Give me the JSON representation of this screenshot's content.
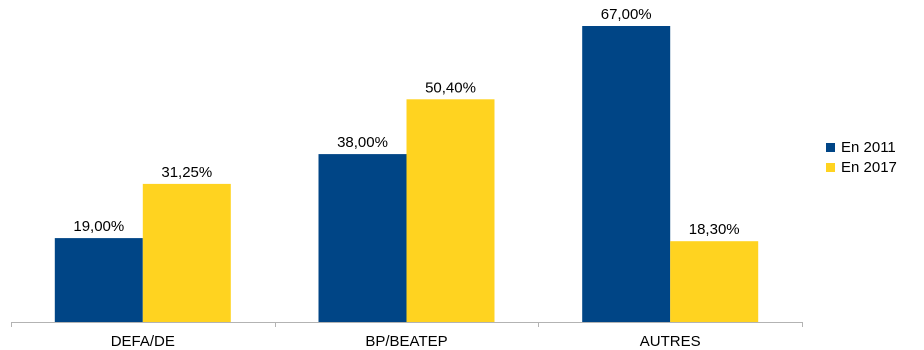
{
  "chart_data": {
    "type": "bar",
    "categories": [
      "DEFA/DE",
      "BP/BEATEP",
      "AUTRES"
    ],
    "series": [
      {
        "name": "En 2011",
        "color": "#004586",
        "values": [
          19.0,
          38.0,
          67.0
        ],
        "labels": [
          "19,00%",
          "38,00%",
          "67,00%"
        ]
      },
      {
        "name": "En 2017",
        "color": "#ffd320",
        "values": [
          31.25,
          50.4,
          18.3
        ],
        "labels": [
          "31,25%",
          "50,40%",
          "18,30%"
        ]
      }
    ],
    "ylim": [
      0,
      70
    ],
    "grid": false,
    "legend_position": "right"
  }
}
